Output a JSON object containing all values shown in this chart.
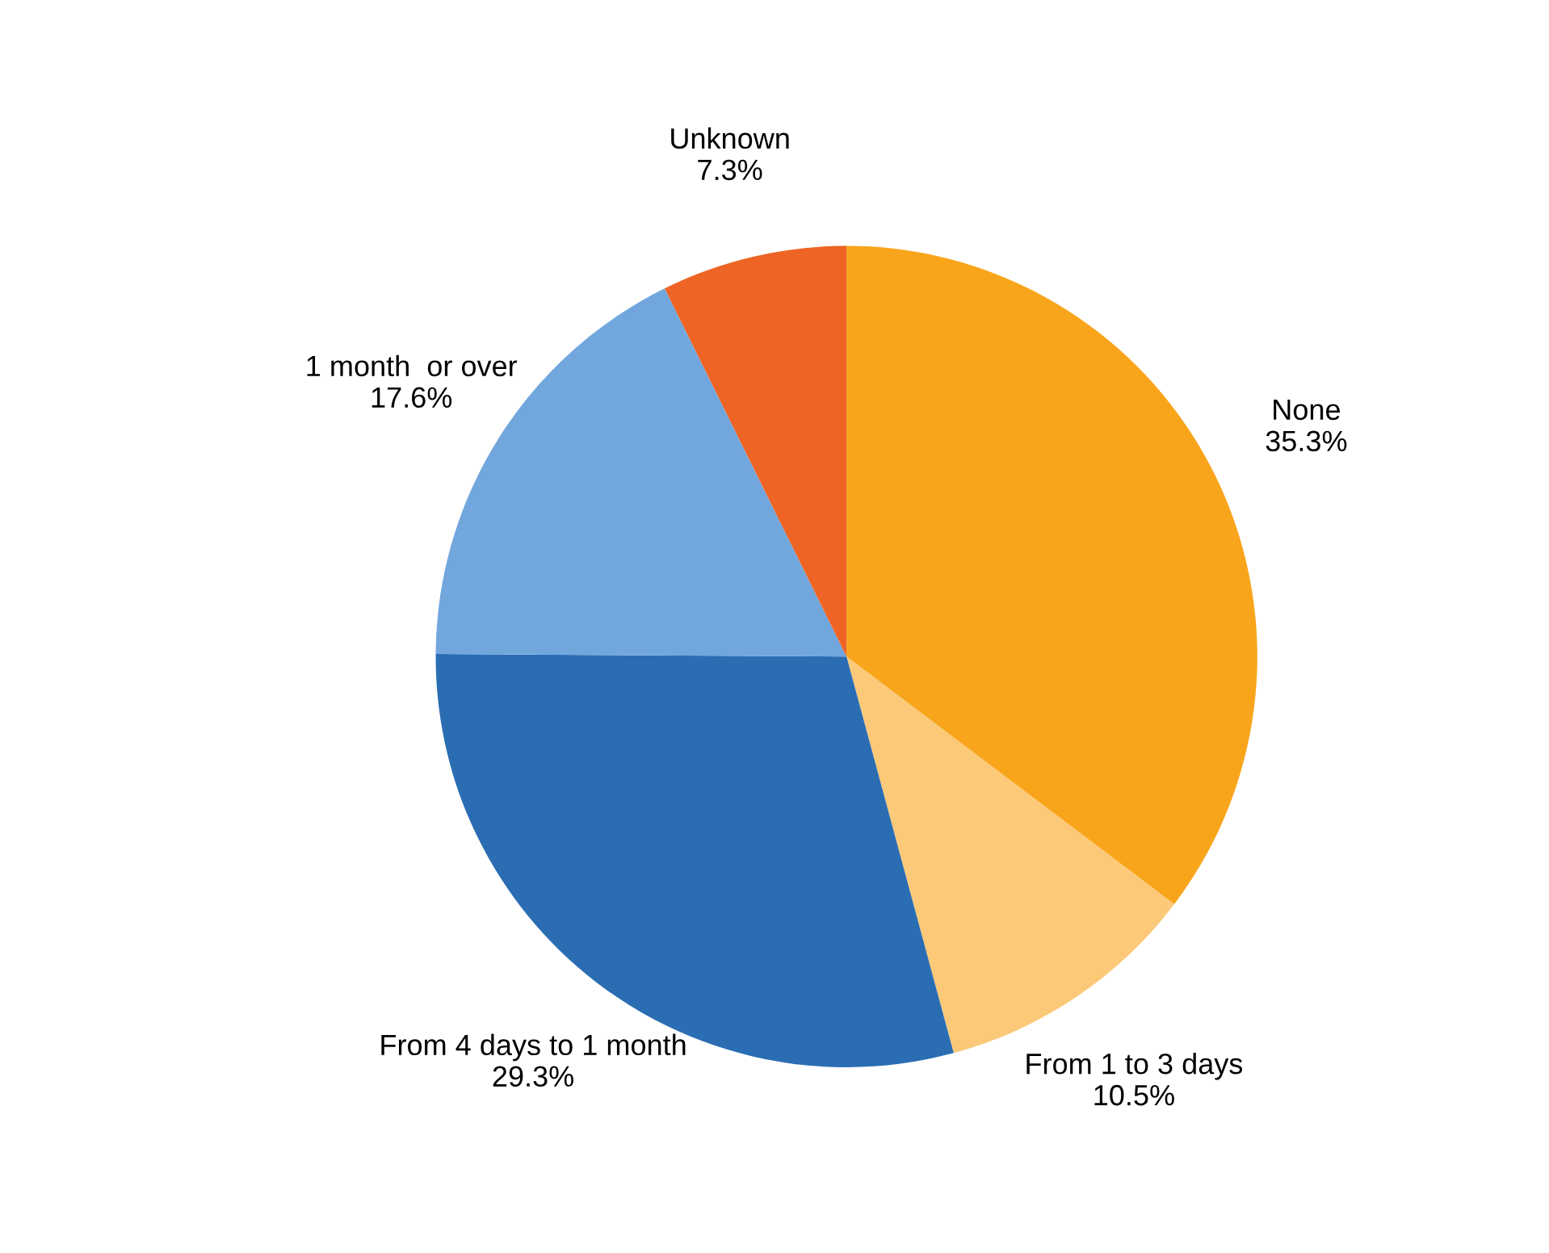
{
  "chart_data": {
    "type": "pie",
    "categories": [
      "None",
      "From 1 to 3 days",
      "From 4 days to 1 month",
      "1 month  or over",
      "Unknown"
    ],
    "values": [
      35.3,
      10.5,
      29.3,
      17.6,
      7.3
    ],
    "value_labels": [
      "35.3%",
      "10.5%",
      "29.3%",
      "17.6%",
      "7.3%"
    ],
    "colors": [
      "#f9a51c",
      "#fbc978",
      "#2a6db3",
      "#72a7de",
      "#ed6424"
    ]
  }
}
